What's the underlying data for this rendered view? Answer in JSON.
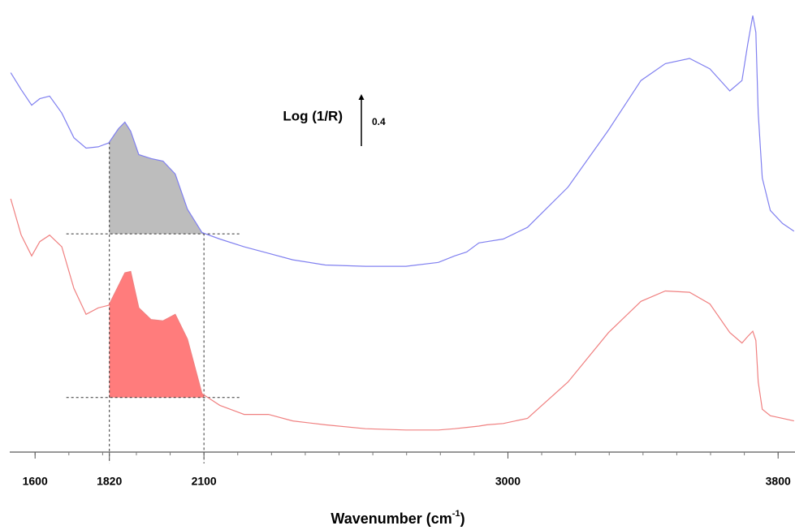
{
  "chart_data": {
    "type": "line",
    "xlabel": [
      "Wavenumber (cm",
      "-1",
      ")"
    ],
    "xlim": [
      1525,
      3850
    ],
    "ylim": [
      0,
      3.48
    ],
    "xticks": [
      1600,
      1820,
      2100,
      3000,
      3800
    ],
    "xminorticks": [
      1600,
      1700,
      1800,
      1900,
      2000,
      2100,
      2200,
      2300,
      2400,
      2500,
      2600,
      2700,
      2800,
      2900,
      3000,
      3100,
      3200,
      3300,
      3400,
      3500,
      3600,
      3700,
      3800
    ],
    "x": [
      1528,
      1559,
      1590,
      1614,
      1643,
      1679,
      1715,
      1751,
      1787,
      1818,
      1847,
      1866,
      1883,
      1907,
      1943,
      1979,
      2015,
      2051,
      2094,
      2147,
      2219,
      2291,
      2363,
      2459,
      2578,
      2698,
      2794,
      2842,
      2878,
      2914,
      2938,
      2986,
      3058,
      3178,
      3298,
      3394,
      3466,
      3538,
      3598,
      3657,
      3693,
      3710,
      3725,
      3734,
      3741,
      3753,
      3777,
      3813,
      3847
    ],
    "series": [
      {
        "color": "#8080f0",
        "values": [
          2.92,
          2.79,
          2.67,
          2.72,
          2.74,
          2.61,
          2.42,
          2.34,
          2.35,
          2.38,
          2.49,
          2.54,
          2.47,
          2.29,
          2.26,
          2.24,
          2.14,
          1.87,
          1.69,
          1.64,
          1.58,
          1.53,
          1.48,
          1.44,
          1.43,
          1.43,
          1.46,
          1.51,
          1.54,
          1.61,
          1.62,
          1.64,
          1.73,
          2.04,
          2.48,
          2.86,
          2.99,
          3.03,
          2.95,
          2.78,
          2.86,
          3.14,
          3.36,
          3.23,
          2.61,
          2.11,
          1.86,
          1.76,
          1.7
        ]
      },
      {
        "color": "#f08080",
        "values": [
          1.95,
          1.67,
          1.51,
          1.62,
          1.67,
          1.58,
          1.26,
          1.06,
          1.11,
          1.13,
          1.28,
          1.38,
          1.39,
          1.11,
          1.02,
          1.01,
          1.06,
          0.87,
          0.45,
          0.36,
          0.29,
          0.29,
          0.24,
          0.21,
          0.18,
          0.17,
          0.17,
          0.18,
          0.19,
          0.2,
          0.21,
          0.22,
          0.26,
          0.54,
          0.92,
          1.16,
          1.24,
          1.23,
          1.14,
          0.92,
          0.84,
          0.89,
          0.93,
          0.86,
          0.54,
          0.33,
          0.28,
          0.26,
          0.24
        ]
      }
    ],
    "bands": [
      {
        "series": 0,
        "from": 1820,
        "to": 2100,
        "baseline": 1.68,
        "color": "#bdbdbd"
      },
      {
        "series": 1,
        "from": 1820,
        "to": 2100,
        "baseline": 0.42,
        "color": "#ff7c7c"
      }
    ],
    "scale_bar": {
      "label": "Log (1/R)",
      "value": 0.4
    }
  }
}
